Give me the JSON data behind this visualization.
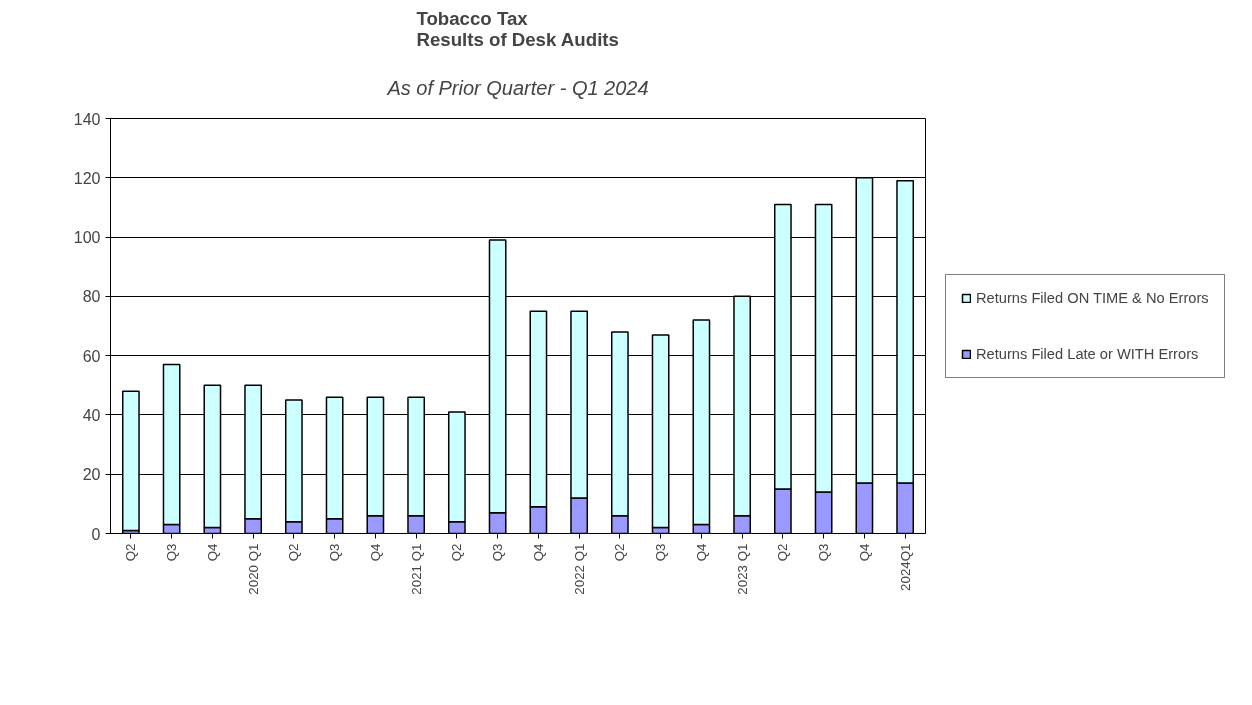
{
  "chart_data": {
    "type": "bar",
    "title": "Tobacco Tax\nResults of Desk Audits",
    "subtitle": "As of Prior Quarter - Q1 2024",
    "categories": [
      "Q2",
      "Q3",
      "Q4",
      "2020 Q1",
      "Q2",
      "Q3",
      "Q4",
      "2021 Q1",
      "Q2",
      "Q3",
      "Q4",
      "2022 Q1",
      "Q2",
      "Q3",
      "Q4",
      "2023 Q1",
      "Q2",
      "Q3",
      "Q4",
      "2024Q1"
    ],
    "stacked": true,
    "series": [
      {
        "name": "Returns Filed Late or WITH Errors",
        "color": "#9999ff",
        "values": [
          1,
          3,
          2,
          5,
          4,
          5,
          6,
          6,
          4,
          7,
          9,
          12,
          6,
          2,
          3,
          6,
          15,
          14,
          17,
          17
        ]
      },
      {
        "name": "Returns Filed ON TIME & No Errors",
        "color": "#ccffff",
        "values": [
          47,
          54,
          48,
          45,
          41,
          41,
          40,
          40,
          37,
          92,
          66,
          63,
          62,
          65,
          69,
          74,
          96,
          97,
          103,
          102
        ]
      }
    ],
    "ylim": [
      0,
      140
    ],
    "yticks": [
      0,
      20,
      40,
      60,
      80,
      100,
      120,
      140
    ],
    "grid": "y",
    "legend": "right"
  }
}
